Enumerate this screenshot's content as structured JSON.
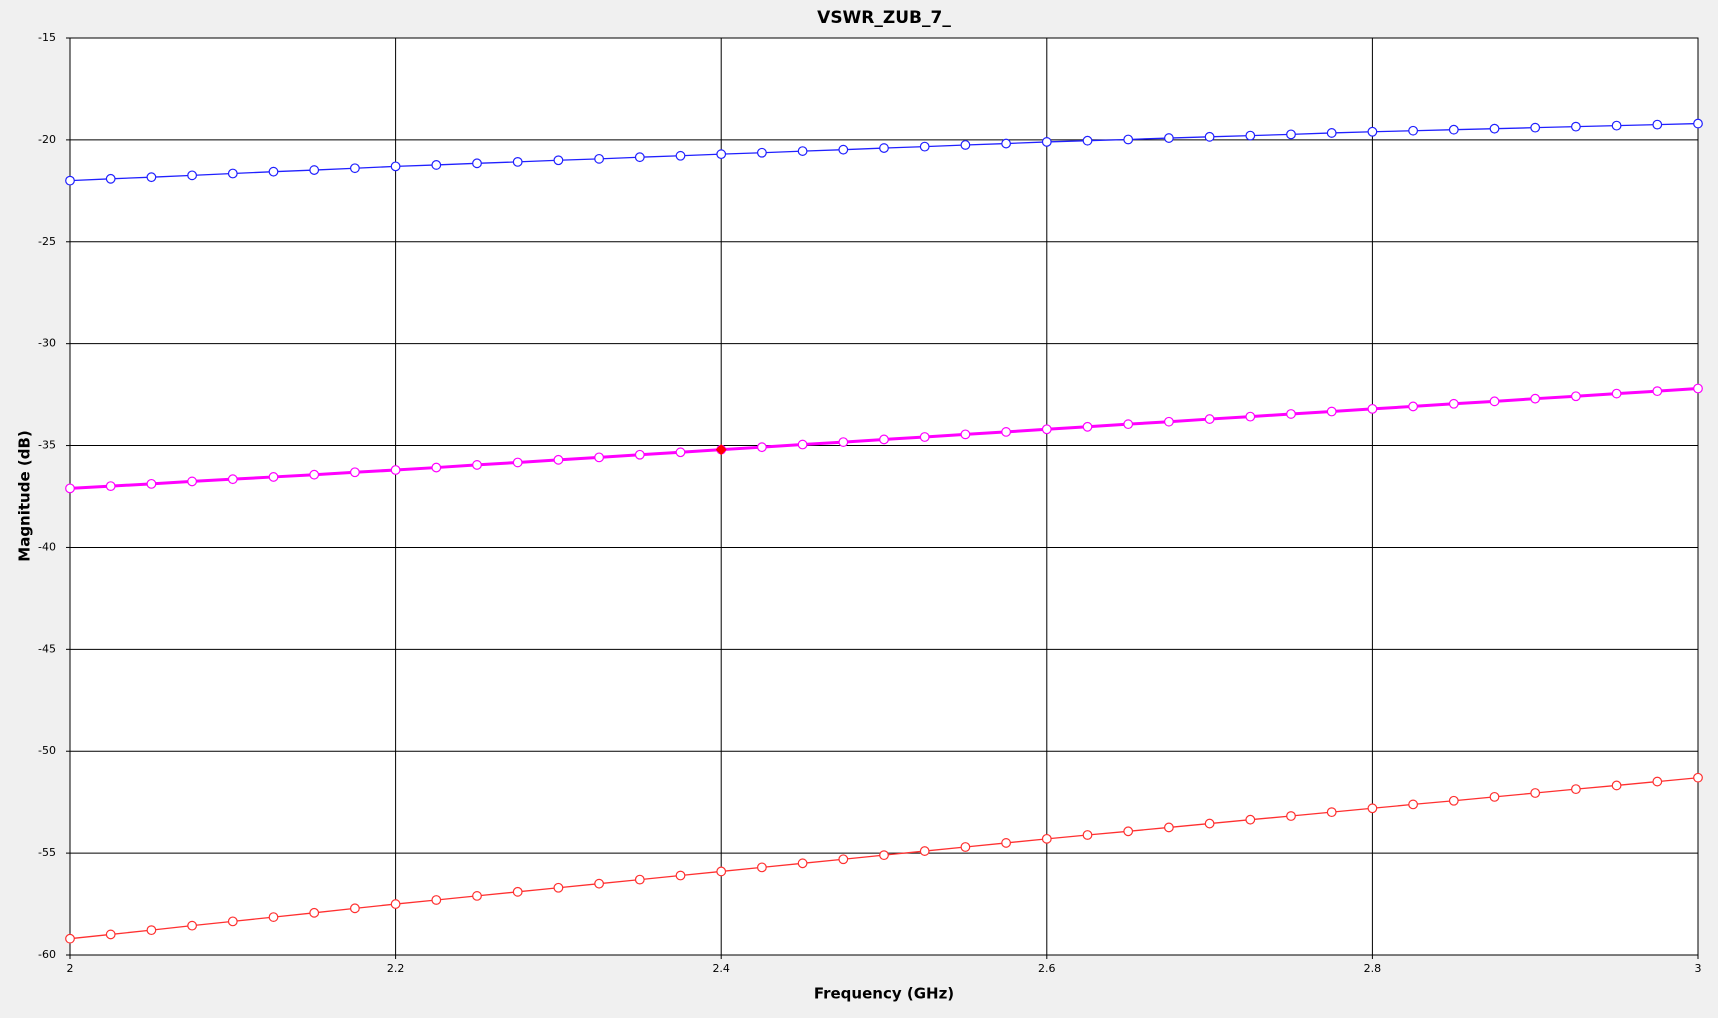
{
  "chart_data": {
    "type": "line",
    "title": "VSWR_ZUB_7_",
    "x_label": "Frequency (GHz)",
    "y_label": "Magnitude (dB)",
    "x": [
      2,
      2.025,
      2.05,
      2.075,
      2.1,
      2.125,
      2.15,
      2.175,
      2.2,
      2.225,
      2.25,
      2.275,
      2.3,
      2.325,
      2.35,
      2.375,
      2.4,
      2.425,
      2.45,
      2.475,
      2.5,
      2.525,
      2.55,
      2.575,
      2.6,
      2.625,
      2.65,
      2.675,
      2.7,
      2.725,
      2.75,
      2.775,
      2.8,
      2.825,
      2.85,
      2.875,
      2.9,
      2.925,
      2.95,
      2.975,
      3
    ],
    "series": [
      {
        "color": "#2020ff",
        "line_width": 1.3,
        "values": [
          -22.0,
          -21.91,
          -21.83,
          -21.74,
          -21.65,
          -21.56,
          -21.48,
          -21.39,
          -21.3,
          -21.23,
          -21.15,
          -21.08,
          -21.0,
          -20.93,
          -20.85,
          -20.78,
          -20.7,
          -20.63,
          -20.55,
          -20.48,
          -20.4,
          -20.33,
          -20.25,
          -20.18,
          -20.1,
          -20.04,
          -19.98,
          -19.91,
          -19.85,
          -19.79,
          -19.73,
          -19.66,
          -19.6,
          -19.55,
          -19.5,
          -19.45,
          -19.4,
          -19.35,
          -19.3,
          -19.25,
          -19.2
        ]
      },
      {
        "color": "#ff00ff",
        "line_width": 3,
        "values": [
          -37.1,
          -36.99,
          -36.88,
          -36.76,
          -36.65,
          -36.54,
          -36.43,
          -36.31,
          -36.2,
          -36.08,
          -35.95,
          -35.83,
          -35.7,
          -35.58,
          -35.45,
          -35.33,
          -35.2,
          -35.08,
          -34.95,
          -34.83,
          -34.7,
          -34.58,
          -34.45,
          -34.33,
          -34.2,
          -34.08,
          -33.95,
          -33.83,
          -33.7,
          -33.58,
          -33.45,
          -33.33,
          -33.2,
          -33.08,
          -32.95,
          -32.83,
          -32.7,
          -32.58,
          -32.45,
          -32.33,
          -32.2
        ]
      },
      {
        "color": "#ff3030",
        "line_width": 1.3,
        "values": [
          -59.2,
          -58.99,
          -58.78,
          -58.56,
          -58.35,
          -58.14,
          -57.93,
          -57.71,
          -57.5,
          -57.3,
          -57.1,
          -56.9,
          -56.7,
          -56.5,
          -56.3,
          -56.1,
          -55.9,
          -55.7,
          -55.5,
          -55.3,
          -55.1,
          -54.9,
          -54.7,
          -54.5,
          -54.3,
          -54.11,
          -53.93,
          -53.74,
          -53.55,
          -53.36,
          -53.18,
          -52.99,
          -52.8,
          -52.61,
          -52.43,
          -52.24,
          -52.05,
          -51.86,
          -51.68,
          -51.49,
          -51.3
        ]
      }
    ],
    "marker": {
      "x": 2.4,
      "y": -35.2,
      "color": "#ff0000"
    },
    "xlim": [
      2,
      3
    ],
    "ylim": [
      -60,
      -15
    ],
    "xticks": [
      2,
      2.2,
      2.4,
      2.6,
      2.8,
      3
    ],
    "yticks": [
      -60,
      -55,
      -50,
      -45,
      -40,
      -35,
      -30,
      -25,
      -20,
      -15
    ],
    "grid": true
  }
}
